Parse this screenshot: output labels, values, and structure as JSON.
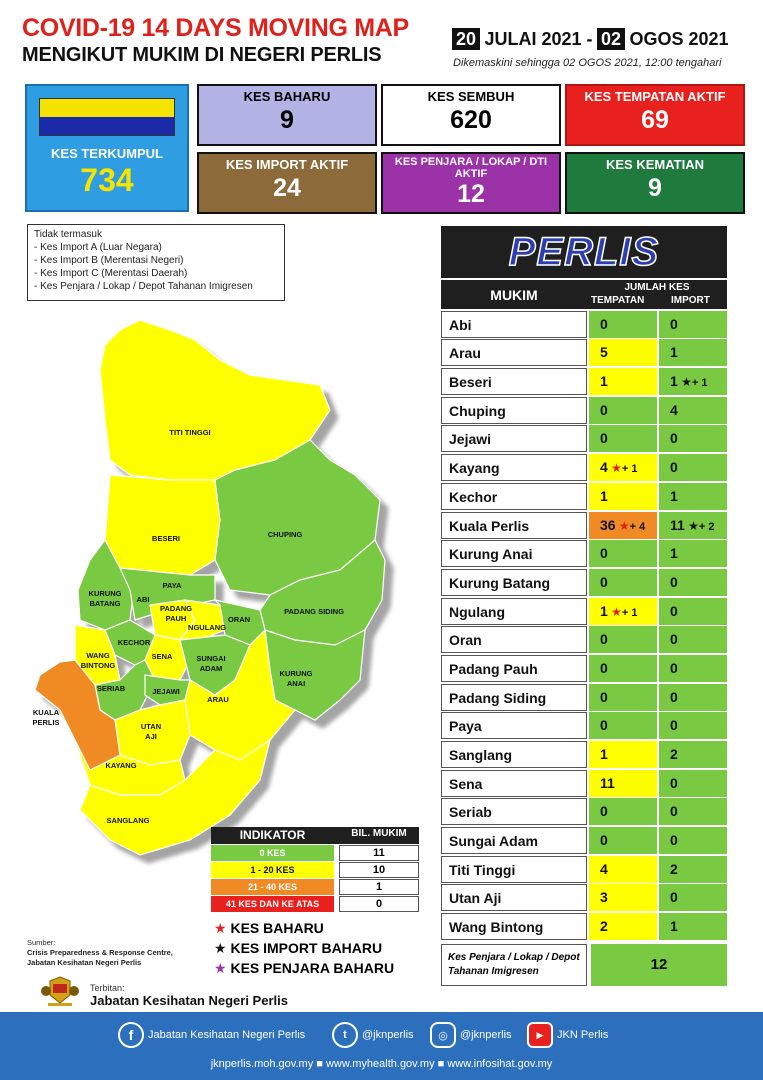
{
  "header": {
    "title_line1": "COVID-19 14 DAYS MOVING MAP",
    "title_line2": "MENGIKUT MUKIM DI NEGERI PERLIS",
    "date_start_day": "20",
    "date_start_rest": "JULAI 2021 -",
    "date_end_day": "02",
    "date_end_rest": "OGOS 2021",
    "updated": "Dikemaskini sehingga 02 OGOS 2021, 12:00 tengahari"
  },
  "colors": {
    "green": "#7ac943",
    "yellow": "#ffff00",
    "orange": "#f08a24",
    "red": "#e8201e",
    "state_flag_yellow": "#f5e400",
    "state_flag_blue": "#1a2aa8"
  },
  "stats": {
    "kes_terkumpul": {
      "label": "KES TERKUMPUL",
      "value": "734"
    },
    "kes_baharu": {
      "label": "KES BAHARU",
      "value": "9"
    },
    "kes_sembuh": {
      "label": "KES SEMBUH",
      "value": "620"
    },
    "kes_tempatan_aktif": {
      "label": "KES TEMPATAN AKTIF",
      "value": "69"
    },
    "kes_import_aktif": {
      "label": "KES IMPORT AKTIF",
      "value": "24"
    },
    "kes_penjara_aktif": {
      "label": "KES PENJARA / LOKAP / DTI AKTIF",
      "value": "12"
    },
    "kes_kematian": {
      "label": "KES KEMATIAN",
      "value": "9"
    }
  },
  "exclusions": {
    "title": "Tidak termasuk",
    "items": [
      "- Kes Import A (Luar Negara)",
      "- Kes Import B (Merentasi Negeri)",
      "- Kes Import C (Merentasi Daerah)",
      "- Kes Penjara / Lokap / Depot Tahanan Imigresen"
    ]
  },
  "map": {
    "labels": {
      "titi_tinggi": "TITI TINGGI",
      "beseri": "BESERI",
      "chuping": "CHUPING",
      "kurung_batang": "KURUNG BATANG",
      "abi": "ABI",
      "paya": "PAYA",
      "padang_pauh": "PADANG PAUH",
      "ngulang": "NGULANG",
      "oran": "ORAN",
      "padang_siding": "PADANG SIDING",
      "kechor": "KECHOR",
      "wang_bintong": "WANG BINTONG",
      "sena": "SENA",
      "sungai_adam": "SUNGAI ADAM",
      "kurung_anai": "KURUNG ANAI",
      "seriab": "SERIAB",
      "jejawi": "JEJAWI",
      "arau": "ARAU",
      "kuala_perlis": "KUALA PERLIS",
      "utan_aji": "UTAN AJI",
      "kayang": "KAYANG",
      "sanglang": "SANGLANG"
    }
  },
  "table": {
    "state_title": "PERLIS",
    "col_mukim": "MUKIM",
    "col_jumlah": "JUMLAH KES",
    "col_tempatan": "TEMPATAN",
    "col_import": "IMPORT",
    "rows": [
      {
        "name": "Abi",
        "loc": "0",
        "loc_extra": "",
        "imp": "0",
        "imp_extra": "",
        "loc_level": "green"
      },
      {
        "name": "Arau",
        "loc": "5",
        "loc_extra": "",
        "imp": "1",
        "imp_extra": "",
        "loc_level": "yellow"
      },
      {
        "name": "Beseri",
        "loc": "1",
        "loc_extra": "",
        "imp": "1",
        "imp_extra": "+ 1",
        "loc_level": "yellow"
      },
      {
        "name": "Chuping",
        "loc": "0",
        "loc_extra": "",
        "imp": "4",
        "imp_extra": "",
        "loc_level": "green"
      },
      {
        "name": "Jejawi",
        "loc": "0",
        "loc_extra": "",
        "imp": "0",
        "imp_extra": "",
        "loc_level": "green"
      },
      {
        "name": "Kayang",
        "loc": "4",
        "loc_extra": "+ 1",
        "imp": "0",
        "imp_extra": "",
        "loc_level": "yellow"
      },
      {
        "name": "Kechor",
        "loc": "1",
        "loc_extra": "",
        "imp": "1",
        "imp_extra": "",
        "loc_level": "yellow"
      },
      {
        "name": "Kuala Perlis",
        "loc": "36",
        "loc_extra": "+ 4",
        "imp": "11",
        "imp_extra": "+ 2",
        "loc_level": "orange"
      },
      {
        "name": "Kurung Anai",
        "loc": "0",
        "loc_extra": "",
        "imp": "1",
        "imp_extra": "",
        "loc_level": "green"
      },
      {
        "name": "Kurung Batang",
        "loc": "0",
        "loc_extra": "",
        "imp": "0",
        "imp_extra": "",
        "loc_level": "green"
      },
      {
        "name": "Ngulang",
        "loc": "1",
        "loc_extra": "+ 1",
        "imp": "0",
        "imp_extra": "",
        "loc_level": "yellow"
      },
      {
        "name": "Oran",
        "loc": "0",
        "loc_extra": "",
        "imp": "0",
        "imp_extra": "",
        "loc_level": "green"
      },
      {
        "name": "Padang Pauh",
        "loc": "0",
        "loc_extra": "",
        "imp": "0",
        "imp_extra": "",
        "loc_level": "green"
      },
      {
        "name": "Padang Siding",
        "loc": "0",
        "loc_extra": "",
        "imp": "0",
        "imp_extra": "",
        "loc_level": "green"
      },
      {
        "name": "Paya",
        "loc": "0",
        "loc_extra": "",
        "imp": "0",
        "imp_extra": "",
        "loc_level": "green"
      },
      {
        "name": "Sanglang",
        "loc": "1",
        "loc_extra": "",
        "imp": "2",
        "imp_extra": "",
        "loc_level": "yellow"
      },
      {
        "name": "Sena",
        "loc": "11",
        "loc_extra": "",
        "imp": "0",
        "imp_extra": "",
        "loc_level": "yellow"
      },
      {
        "name": "Seriab",
        "loc": "0",
        "loc_extra": "",
        "imp": "0",
        "imp_extra": "",
        "loc_level": "green"
      },
      {
        "name": "Sungai Adam",
        "loc": "0",
        "loc_extra": "",
        "imp": "0",
        "imp_extra": "",
        "loc_level": "green"
      },
      {
        "name": "Titi Tinggi",
        "loc": "4",
        "loc_extra": "",
        "imp": "2",
        "imp_extra": "",
        "loc_level": "yellow"
      },
      {
        "name": "Utan Aji",
        "loc": "3",
        "loc_extra": "",
        "imp": "0",
        "imp_extra": "",
        "loc_level": "yellow"
      },
      {
        "name": "Wang Bintong",
        "loc": "2",
        "loc_extra": "",
        "imp": "1",
        "imp_extra": "",
        "loc_level": "yellow"
      }
    ],
    "penjara_label": "Kes Penjara / Lokap / Depot Tahanan Imigresen",
    "penjara_value": "12"
  },
  "indikator": {
    "head_label": "INDIKATOR",
    "head_count": "BIL. MUKIM",
    "rows": [
      {
        "label": "0 KES",
        "count": "11",
        "color": "#7ac943",
        "text_color": "#ffffff"
      },
      {
        "label": "1 - 20 KES",
        "count": "10",
        "color": "#ffff00",
        "text_color": "#111111"
      },
      {
        "label": "21 - 40 KES",
        "count": "1",
        "color": "#f08a24",
        "text_color": "#ffffff"
      },
      {
        "label": "41 KES DAN KE ATAS",
        "count": "0",
        "color": "#e8201e",
        "text_color": "#ffffff"
      }
    ]
  },
  "legend": {
    "baharu": "KES BAHARU",
    "import_baharu": "KES IMPORT BAHARU",
    "penjara_baharu": "KES PENJARA BAHARU"
  },
  "source": {
    "label": "Sumber:",
    "line1": "Crisis Preparedness & Response Centre,",
    "line2": "Jabatan Kesihatan Negeri Perlis"
  },
  "publisher": {
    "label": "Terbitan:",
    "name": "Jabatan Kesihatan Negeri Perlis"
  },
  "footer": {
    "facebook": "Jabatan Kesihatan Negeri Perlis",
    "twitter": "@jknperlis",
    "instagram": "@jknperlis",
    "youtube": "JKN Perlis",
    "url1": "jknperlis.moh.gov.my",
    "url2": "www.myhealth.gov.my",
    "url3": "www.infosihat.gov.my"
  }
}
